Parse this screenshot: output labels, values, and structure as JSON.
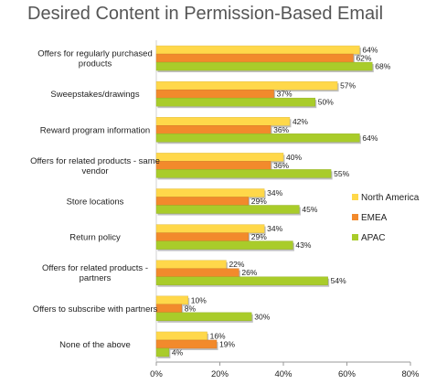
{
  "chart_data": {
    "type": "bar",
    "orientation": "horizontal",
    "title": "Desired Content in Permission-Based Email",
    "categories": [
      [
        "Offers for regularly purchased",
        "products"
      ],
      [
        "Sweepstakes/drawings"
      ],
      [
        "Reward program information"
      ],
      [
        "Offers for related products - same",
        "vendor"
      ],
      [
        "Store locations"
      ],
      [
        "Return policy"
      ],
      [
        "Offers for related products -",
        "partners"
      ],
      [
        "Offers to subscribe with partners"
      ],
      [
        "None of the above"
      ]
    ],
    "series": [
      {
        "name": "North America",
        "color": "#FFD84A",
        "values": [
          64,
          57,
          42,
          40,
          34,
          34,
          22,
          10,
          16
        ],
        "labels": [
          "64%",
          "57%",
          "42%",
          "40%",
          "34%",
          "34%",
          "22%",
          "10%",
          "16%"
        ]
      },
      {
        "name": "EMEA",
        "color": "#F28A2C",
        "values": [
          62,
          37,
          36,
          36,
          29,
          29,
          26,
          8,
          19
        ],
        "labels": [
          "62%",
          "37%",
          "36%",
          "36%",
          "29%",
          "29%",
          "26%",
          "8%",
          "19%"
        ]
      },
      {
        "name": "APAC",
        "color": "#A9CC2A",
        "values": [
          68,
          50,
          64,
          55,
          45,
          43,
          54,
          30,
          4
        ],
        "labels": [
          "68%",
          "50%",
          "64%",
          "55%",
          "45%",
          "43%",
          "54%",
          "30%",
          "4%"
        ]
      }
    ],
    "xlim": [
      0,
      80
    ],
    "xticks": [
      0,
      20,
      40,
      60,
      80
    ],
    "xtick_labels": [
      "0%",
      "20%",
      "40%",
      "60%",
      "80%"
    ],
    "xlabel": "",
    "ylabel": "",
    "grid": false,
    "legend_position": "right"
  }
}
